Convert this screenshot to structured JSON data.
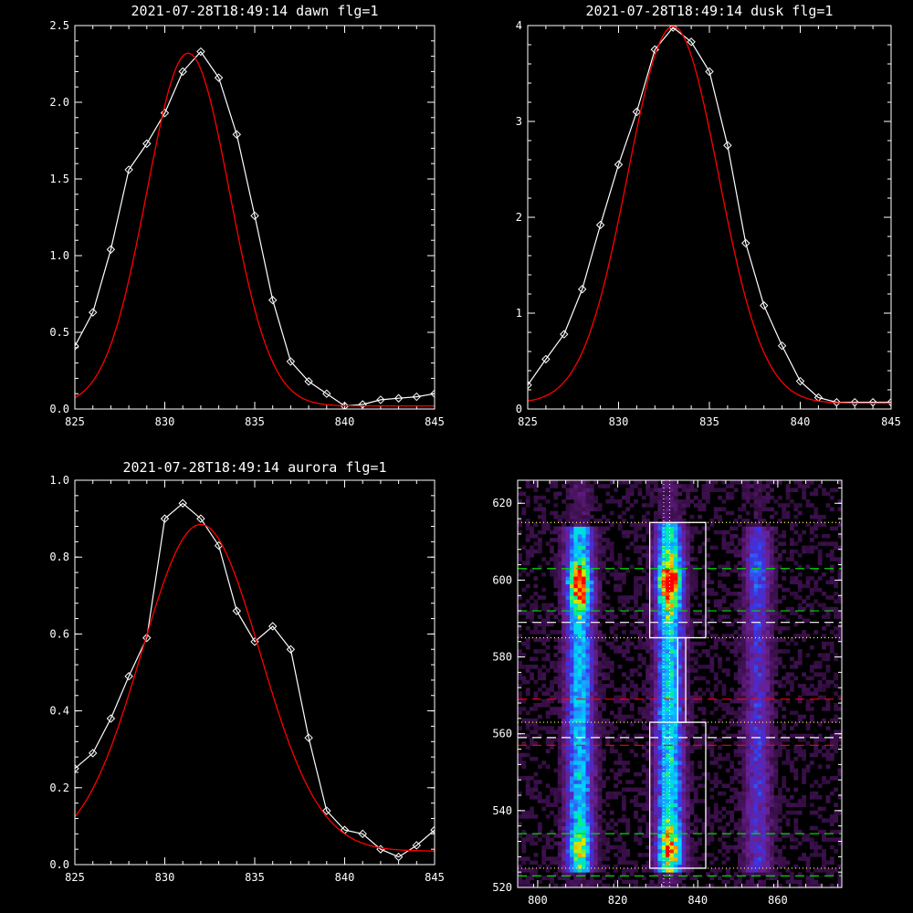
{
  "chart_data": [
    {
      "type": "line",
      "title": "2021-07-28T18:49:14 dawn flg=1",
      "xlim": [
        825,
        845
      ],
      "ylim": [
        0,
        2.5
      ],
      "xticks": [
        825,
        830,
        835,
        840,
        845
      ],
      "yticks": [
        0.0,
        0.5,
        1.0,
        1.5,
        2.0,
        2.5
      ],
      "xtick_labels": [
        "825",
        "830",
        "835",
        "840",
        "845"
      ],
      "ytick_labels": [
        "0.0",
        "0.5",
        "1.0",
        "1.5",
        "2.0",
        "2.5"
      ],
      "series": [
        {
          "color": "#ffffff",
          "marker": "diamond",
          "x": [
            825,
            826,
            827,
            828,
            829,
            830,
            831,
            832,
            833,
            834,
            835,
            836,
            837,
            838,
            839,
            840,
            841,
            842,
            843,
            844,
            845
          ],
          "y": [
            0.41,
            0.63,
            1.04,
            1.56,
            1.73,
            1.93,
            2.2,
            2.33,
            2.16,
            1.79,
            1.26,
            0.71,
            0.31,
            0.18,
            0.1,
            0.02,
            0.03,
            0.06,
            0.07,
            0.08,
            0.1
          ]
        },
        {
          "color": "#ff0000",
          "fit": "gaussian",
          "amplitude": 2.3,
          "center": 831.3,
          "sigma": 2.3,
          "offset": 0.02,
          "x_range": [
            825,
            845
          ]
        }
      ]
    },
    {
      "type": "line",
      "title": "2021-07-28T18:49:14 dusk flg=1",
      "xlim": [
        825,
        845
      ],
      "ylim": [
        0,
        4
      ],
      "xticks": [
        825,
        830,
        835,
        840,
        845
      ],
      "yticks": [
        0,
        1,
        2,
        3,
        4
      ],
      "xtick_labels": [
        "825",
        "830",
        "835",
        "840",
        "845"
      ],
      "ytick_labels": [
        "0",
        "1",
        "2",
        "3",
        "4"
      ],
      "series": [
        {
          "color": "#ffffff",
          "marker": "diamond",
          "x": [
            825,
            826,
            827,
            828,
            829,
            830,
            831,
            832,
            833,
            834,
            835,
            836,
            837,
            838,
            839,
            840,
            841,
            842,
            843,
            844,
            845
          ],
          "y": [
            0.25,
            0.52,
            0.78,
            1.25,
            1.92,
            2.55,
            3.1,
            3.75,
            3.98,
            3.83,
            3.52,
            2.75,
            1.73,
            1.08,
            0.66,
            0.29,
            0.12,
            0.07,
            0.07,
            0.07,
            0.07
          ]
        },
        {
          "color": "#ff0000",
          "fit": "gaussian",
          "amplitude": 3.93,
          "center": 833.0,
          "sigma": 2.5,
          "offset": 0.06,
          "x_range": [
            825,
            845
          ]
        }
      ]
    },
    {
      "type": "line",
      "title": "2021-07-28T18:49:14 aurora flg=1",
      "xlim": [
        825,
        845
      ],
      "ylim": [
        0,
        1.0
      ],
      "xticks": [
        825,
        830,
        835,
        840,
        845
      ],
      "yticks": [
        0.0,
        0.2,
        0.4,
        0.6,
        0.8,
        1.0
      ],
      "xtick_labels": [
        "825",
        "830",
        "835",
        "840",
        "845"
      ],
      "ytick_labels": [
        "0.0",
        "0.2",
        "0.4",
        "0.6",
        "0.8",
        "1.0"
      ],
      "series": [
        {
          "color": "#ffffff",
          "marker": "diamond",
          "x": [
            825,
            826,
            827,
            828,
            829,
            830,
            831,
            832,
            833,
            834,
            835,
            836,
            837,
            838,
            839,
            840,
            841,
            842,
            843,
            844,
            845
          ],
          "y": [
            0.25,
            0.29,
            0.38,
            0.49,
            0.59,
            0.9,
            0.94,
            0.9,
            0.83,
            0.66,
            0.58,
            0.62,
            0.56,
            0.33,
            0.14,
            0.09,
            0.08,
            0.04,
            0.02,
            0.05,
            0.09
          ]
        },
        {
          "color": "#ff0000",
          "fit": "gaussian",
          "amplitude": 0.85,
          "center": 832.0,
          "sigma": 3.3,
          "offset": 0.035,
          "x_range": [
            825,
            845
          ]
        }
      ]
    },
    {
      "type": "heatmap",
      "title": "",
      "xlim": [
        795,
        876
      ],
      "ylim": [
        520,
        626
      ],
      "xticks": [
        800,
        820,
        840,
        860
      ],
      "yticks": [
        520,
        540,
        560,
        580,
        600,
        620
      ],
      "xtick_labels": [
        "800",
        "820",
        "840",
        "860"
      ],
      "ytick_labels": [
        "520",
        "540",
        "560",
        "580",
        "600",
        "620"
      ],
      "colormap": [
        "#000000",
        "#3a0f4a",
        "#6a1f8f",
        "#3c32e6",
        "#1e8cff",
        "#00d7ff",
        "#00f08c",
        "#d2f000",
        "#ff9b00",
        "#ff0000"
      ],
      "emission_columns": [
        {
          "x_center": 810.5,
          "y_range": [
            524,
            613
          ],
          "strength": 0.45,
          "hot_spots": [
            {
              "y": 598,
              "amplitude": 0.55
            },
            {
              "y": 530,
              "amplitude": 0.25
            }
          ]
        },
        {
          "x_center": 833,
          "y_range": [
            524,
            614
          ],
          "strength": 0.5,
          "hot_spots": [
            {
              "y": 599,
              "amplitude": 0.6
            },
            {
              "y": 530,
              "amplitude": 0.35
            }
          ]
        },
        {
          "x_center": 855,
          "y_range": [
            524,
            613
          ],
          "strength": 0.22,
          "hot_spots": [
            {
              "y": 603,
              "amplitude": 0.1
            }
          ]
        }
      ],
      "boxes": [
        {
          "x": [
            828,
            842
          ],
          "y": [
            585,
            615
          ]
        },
        {
          "x": [
            835,
            837
          ],
          "y": [
            563,
            585
          ]
        },
        {
          "x": [
            828,
            842
          ],
          "y": [
            525,
            563
          ]
        }
      ],
      "horizontal_lines": [
        {
          "y": 615,
          "style": "dotted",
          "color": "#ffff66"
        },
        {
          "y": 603,
          "style": "dashed",
          "color": "#00d800"
        },
        {
          "y": 592,
          "style": "dashed",
          "color": "#00d800"
        },
        {
          "y": 589,
          "style": "dashed",
          "color": "#ffffff"
        },
        {
          "y": 585,
          "style": "dotted",
          "color": "#ffff66"
        },
        {
          "y": 569,
          "style": "dashed",
          "color": "#ff0000"
        },
        {
          "y": 563,
          "style": "dotted",
          "color": "#ffff66"
        },
        {
          "y": 559,
          "style": "dashed",
          "color": "#ffffff"
        },
        {
          "y": 557,
          "style": "dashed",
          "color": "#ff0000"
        },
        {
          "y": 534,
          "style": "dashed",
          "color": "#00d800"
        },
        {
          "y": 525,
          "style": "dotted",
          "color": "#ffff66"
        },
        {
          "y": 523,
          "style": "dashed",
          "color": "#00d800"
        }
      ],
      "vertical_lines": [
        {
          "x": 831.5,
          "style": "dotted",
          "color": "#ffffff"
        },
        {
          "x": 833,
          "style": "dotted",
          "color": "#ffffff"
        }
      ]
    }
  ]
}
